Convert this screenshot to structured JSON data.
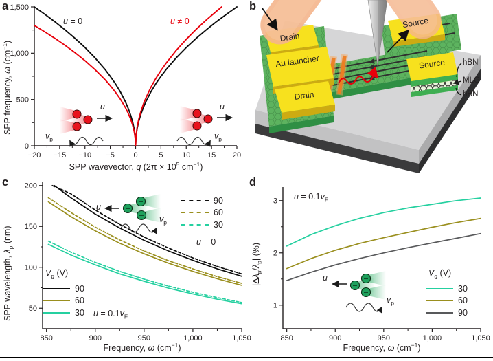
{
  "panels": {
    "a": "a",
    "b": "b",
    "c": "c",
    "d": "d"
  },
  "colors": {
    "black_series": "#0d0d0d",
    "red": "#e8000b",
    "olive": "#9a8f1e",
    "teal": "#25d0a0",
    "gray90": "#58595b",
    "gold_pad": "#f7e11e",
    "graphene_green": "#5db35f",
    "substrate_gray": "#d6d6d7"
  },
  "panel_a": {
    "ylabel": "SPP frequency, *ω* (cm^{−1})",
    "xlabel": "SPP wavevector, *q* (2π × 10^{5} cm^{−1})",
    "label_u0": "*u* = 0",
    "label_une0": "*u* ≠ 0",
    "inset_left": {
      "u": "*u*",
      "vp": "*v*_{p}"
    },
    "inset_right": {
      "u": "*u*",
      "vp": "*v*_{p}"
    }
  },
  "panel_b": {
    "labels": {
      "drain_top": "Drain",
      "au_launcher": "Au launcher",
      "drain_bottom": "Drain",
      "source_top": "Source",
      "source_right": "Source",
      "hbn_top": "hBN",
      "mlg": "MLG",
      "hbn_bottom": "hBN"
    }
  },
  "panel_c": {
    "ylabel": "SPP wavelength, *λ*_{p} (nm)",
    "xlabel": "Frequency, *ω* (cm^{−1})",
    "legend_dashed": {
      "dash": true,
      "items": [
        {
          "label": "90",
          "color": "#0d0d0d"
        },
        {
          "label": "60",
          "color": "#9a8f1e"
        },
        {
          "label": "30",
          "color": "#25d0a0"
        }
      ],
      "note": "*u* = 0"
    },
    "legend_solid": {
      "dash": false,
      "title": "*V*_{g} (V)",
      "items": [
        {
          "label": "90",
          "color": "#0d0d0d"
        },
        {
          "label": "60",
          "color": "#9a8f1e"
        },
        {
          "label": "30",
          "color": "#25d0a0"
        }
      ],
      "note": "*u* = 0.1*v*_{F}"
    },
    "inset": {
      "u": "*u*",
      "vp": "*v*_{p}"
    }
  },
  "panel_d": {
    "ylabel": "|Δ*λ*_{p}/*λ*_{p}| (%)",
    "xlabel": "Frequency, *ω* (cm^{−1})",
    "annotation": "*u* = 0.1*v*_{F}",
    "legend": {
      "dash": false,
      "title": "*V*_{g} (V)",
      "items": [
        {
          "label": "30",
          "color": "#25d0a0"
        },
        {
          "label": "60",
          "color": "#9a8f1e"
        },
        {
          "label": "90",
          "color": "#58595b"
        }
      ]
    },
    "inset": {
      "u": "*u*",
      "vp": "*v*_{p}"
    }
  },
  "chart_data": [
    {
      "id": "a",
      "type": "line",
      "xlabel": "SPP wavevector, q (2π × 10^5 cm^-1)",
      "ylabel": "SPP frequency, ω (cm^-1)",
      "xlim": [
        -20,
        20
      ],
      "ylim": [
        0,
        1500
      ],
      "xticks": {
        "values": [
          -20,
          -15,
          -10,
          -5,
          0,
          5,
          10,
          15,
          20
        ],
        "labels": [
          "−20",
          "−15",
          "−10",
          "−5",
          "0",
          "5",
          "10",
          "15",
          "20"
        ]
      },
      "yticks": {
        "values": [
          0,
          500,
          1000,
          1500
        ],
        "labels": [
          "0",
          "500",
          "1,000",
          "1,500"
        ]
      },
      "xminor": [
        -17.5,
        -12.5,
        -7.5,
        -2.5,
        2.5,
        7.5,
        12.5,
        17.5
      ],
      "yminor": [
        250,
        750,
        1250
      ],
      "series": [
        {
          "name": "u = 0",
          "color": "#0d0d0d",
          "dash": false,
          "x": [
            -20,
            -18,
            -16,
            -14,
            -12,
            -10,
            -8,
            -6,
            -5,
            -4,
            -3,
            -2,
            -1.5,
            -1,
            -0.6,
            -0.3,
            -0.1,
            0,
            0.1,
            0.3,
            0.6,
            1,
            1.5,
            2,
            3,
            4,
            5,
            6,
            8,
            10,
            12,
            14,
            16,
            18,
            20
          ],
          "y": [
            1500,
            1423,
            1342,
            1255,
            1162,
            1061,
            949,
            822,
            750,
            671,
            581,
            474,
            411,
            335,
            260,
            184,
            106,
            0,
            106,
            184,
            260,
            335,
            411,
            474,
            581,
            671,
            750,
            822,
            949,
            1061,
            1162,
            1255,
            1342,
            1423,
            1500
          ]
        },
        {
          "name": "u ≠ 0",
          "color": "#e8000b",
          "dash": false,
          "x": [
            -20,
            -18,
            -16,
            -14,
            -12,
            -10,
            -8,
            -6,
            -5,
            -4,
            -3,
            -2,
            -1.5,
            -1,
            -0.6,
            -0.3,
            -0.1,
            0,
            0.1,
            0.3,
            0.6,
            1,
            1.5,
            2,
            3,
            4,
            5,
            6,
            8,
            10,
            12,
            14,
            16,
            17
          ],
          "y": [
            1300,
            1233,
            1163,
            1088,
            1007,
            919,
            822,
            712,
            650,
            581,
            503,
            411,
            356,
            291,
            225,
            159,
            92,
            0,
            115,
            199,
            282,
            364,
            446,
            514,
            630,
            728,
            813,
            891,
            1029,
            1150,
            1260,
            1361,
            1455,
            1500
          ]
        }
      ]
    },
    {
      "id": "c",
      "type": "line",
      "xlabel": "Frequency, ω (cm^-1)",
      "ylabel": "SPP wavelength, λp (nm)",
      "xlim": [
        846,
        1050
      ],
      "ylim": [
        25,
        204
      ],
      "xticks": {
        "values": [
          850,
          900,
          950,
          1000,
          1050
        ],
        "labels": [
          "850",
          "900",
          "950",
          "1,000",
          "1,050"
        ]
      },
      "yticks": {
        "values": [
          50,
          100,
          150,
          200
        ],
        "labels": [
          "50",
          "100",
          "150",
          "200"
        ]
      },
      "xminor": [
        875,
        925,
        975,
        1025
      ],
      "yminor": [
        75,
        125,
        175
      ],
      "series": [
        {
          "name": "Vg 90, u = 0 (dashed)",
          "color": "#0d0d0d",
          "dash": true,
          "x": [
            856,
            875,
            900,
            925,
            950,
            975,
            1000,
            1025,
            1050
          ],
          "y": [
            200,
            190,
            170,
            152.5,
            137,
            123.5,
            111.5,
            101,
            92
          ]
        },
        {
          "name": "Vg 90, u = 0.1vF (solid)",
          "color": "#0d0d0d",
          "dash": false,
          "x": [
            858,
            875,
            900,
            925,
            950,
            975,
            1000,
            1025,
            1050
          ],
          "y": [
            200,
            185,
            165,
            148,
            133,
            120,
            108.5,
            98,
            89
          ]
        },
        {
          "name": "Vg 60, u = 0 (dashed)",
          "color": "#9a8f1e",
          "dash": true,
          "x": [
            852,
            875,
            900,
            925,
            950,
            975,
            1000,
            1025,
            1050
          ],
          "y": [
            185,
            167,
            149,
            133.5,
            120,
            108,
            98,
            88.5,
            80.5
          ]
        },
        {
          "name": "Vg 60, u = 0.1vF (solid)",
          "color": "#9a8f1e",
          "dash": false,
          "x": [
            852,
            875,
            900,
            925,
            950,
            975,
            1000,
            1025,
            1050
          ],
          "y": [
            180,
            162,
            144.5,
            129.5,
            116.5,
            105,
            95,
            86,
            78
          ]
        },
        {
          "name": "Vg 30, u = 0 (dashed)",
          "color": "#25d0a0",
          "dash": true,
          "x": [
            852,
            875,
            900,
            925,
            950,
            975,
            1000,
            1025,
            1050
          ],
          "y": [
            132,
            118.5,
            106,
            95,
            85.5,
            77,
            69.5,
            63,
            57
          ]
        },
        {
          "name": "Vg 30, u = 0.1vF (solid)",
          "color": "#25d0a0",
          "dash": false,
          "x": [
            852,
            875,
            900,
            925,
            950,
            975,
            1000,
            1025,
            1050
          ],
          "y": [
            128,
            115,
            103,
            92,
            83,
            74.5,
            67.5,
            61,
            55.5
          ]
        }
      ]
    },
    {
      "id": "d",
      "type": "line",
      "xlabel": "Frequency, ω (cm^-1)",
      "ylabel": "|Δλp/λp| (%)",
      "xlim": [
        846,
        1050
      ],
      "ylim": [
        0.55,
        3.26
      ],
      "xticks": {
        "values": [
          850,
          900,
          950,
          1000,
          1050
        ],
        "labels": [
          "850",
          "900",
          "950",
          "1,000",
          "1,050"
        ]
      },
      "yticks": {
        "values": [
          1,
          2,
          3
        ],
        "labels": [
          "1",
          "2",
          "3"
        ]
      },
      "xminor": [
        875,
        925,
        975,
        1025
      ],
      "yminor": [
        1.5,
        2.5
      ],
      "series": [
        {
          "name": "Vg 30",
          "color": "#25d0a0",
          "dash": false,
          "x": [
            850,
            875,
            900,
            925,
            950,
            975,
            1000,
            1025,
            1050
          ],
          "y": [
            2.13,
            2.35,
            2.52,
            2.66,
            2.77,
            2.86,
            2.93,
            3.0,
            3.05
          ]
        },
        {
          "name": "Vg 60",
          "color": "#9a8f1e",
          "dash": false,
          "x": [
            850,
            875,
            900,
            925,
            950,
            975,
            1000,
            1025,
            1050
          ],
          "y": [
            1.7,
            1.89,
            2.05,
            2.18,
            2.29,
            2.39,
            2.49,
            2.58,
            2.66
          ]
        },
        {
          "name": "Vg 90",
          "color": "#58595b",
          "dash": false,
          "x": [
            850,
            875,
            900,
            925,
            950,
            975,
            1000,
            1025,
            1050
          ],
          "y": [
            1.47,
            1.63,
            1.77,
            1.89,
            2.0,
            2.1,
            2.19,
            2.28,
            2.37
          ]
        }
      ]
    }
  ]
}
